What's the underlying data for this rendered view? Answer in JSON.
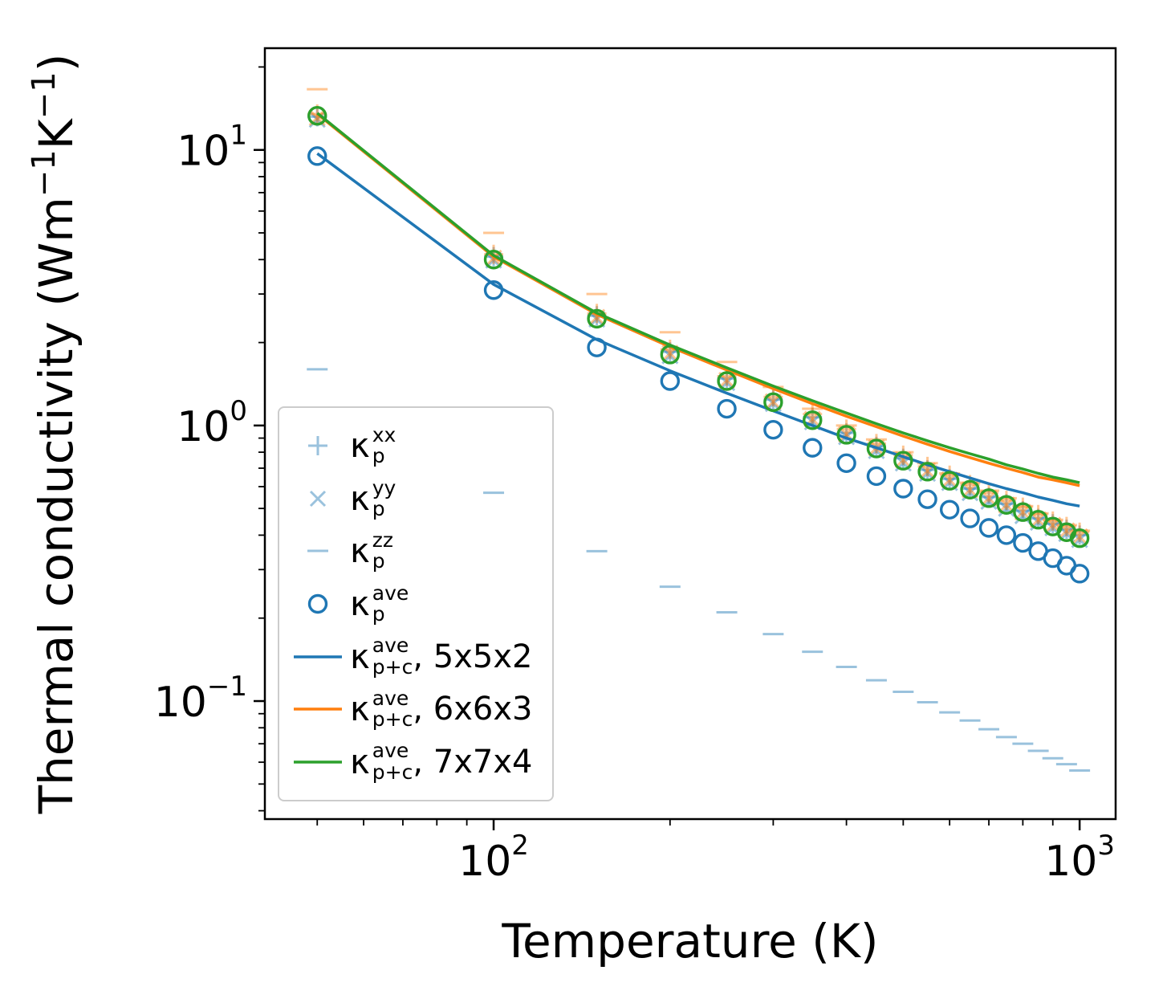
{
  "colors": {
    "blue": "#1f77b4",
    "orange": "#ff7f0e",
    "green": "#2ca02c",
    "pale_marker_opacity": 0.45,
    "axis": "#000000",
    "legend_border": "#cccccc"
  },
  "legend": {
    "items": [
      {
        "marker": "plus",
        "symbol": "κ",
        "sub": "p",
        "sup": "xx",
        "suffix": "",
        "color": "#1f77b4",
        "opacity": 0.45,
        "lw": 3
      },
      {
        "marker": "x",
        "symbol": "κ",
        "sub": "p",
        "sup": "yy",
        "suffix": "",
        "color": "#1f77b4",
        "opacity": 0.45,
        "lw": 3
      },
      {
        "marker": "hline",
        "symbol": "κ",
        "sub": "p",
        "sup": "zz",
        "suffix": "",
        "color": "#1f77b4",
        "opacity": 0.45,
        "lw": 3
      },
      {
        "marker": "circle",
        "symbol": "κ",
        "sub": "p",
        "sup": "ave",
        "suffix": "",
        "color": "#1f77b4",
        "opacity": 1,
        "lw": 3.4
      },
      {
        "marker": "line",
        "symbol": "κ",
        "sub": "p+c",
        "sup": "ave",
        "suffix": ", 5x5x2",
        "color": "#1f77b4",
        "opacity": 1,
        "lw": 3.5
      },
      {
        "marker": "line",
        "symbol": "κ",
        "sub": "p+c",
        "sup": "ave",
        "suffix": ", 6x6x3",
        "color": "#ff7f0e",
        "opacity": 1,
        "lw": 3.5
      },
      {
        "marker": "line",
        "symbol": "κ",
        "sub": "p+c",
        "sup": "ave",
        "suffix": ", 7x7x4",
        "color": "#2ca02c",
        "opacity": 1,
        "lw": 3.5
      }
    ]
  },
  "chart_data": {
    "type": "scatter",
    "title": "",
    "xlabel": "Temperature (K)",
    "ylabel": "Thermal conductivity (Wm−1K−1)",
    "ylabel_parts": [
      {
        "t": "Thermal conductivity (Wm",
        "sup": false
      },
      {
        "t": "−1",
        "sup": true
      },
      {
        "t": "K",
        "sup": false
      },
      {
        "t": "−1",
        "sup": true
      },
      {
        "t": ")",
        "sup": false
      }
    ],
    "x_scale": "log",
    "y_scale": "log",
    "xlim": [
      40.7,
      1152
    ],
    "ylim": [
      0.0373,
      23.4
    ],
    "grid": false,
    "legend_position": "lower left inside",
    "x": [
      50,
      100,
      150,
      200,
      250,
      300,
      350,
      400,
      450,
      500,
      550,
      600,
      650,
      700,
      750,
      800,
      850,
      900,
      950,
      1000
    ],
    "x_ticks": [
      {
        "v": 100,
        "exp": "2"
      },
      {
        "v": 1000,
        "exp": "3"
      }
    ],
    "y_ticks": [
      {
        "v": 10,
        "exp": "1"
      },
      {
        "v": 1,
        "exp": "0"
      },
      {
        "v": 0.1,
        "exp": "−1"
      }
    ],
    "x_minor": [
      50,
      60,
      70,
      80,
      90,
      200,
      300,
      400,
      500,
      600,
      700,
      800,
      900
    ],
    "y_minor": [
      0.04,
      0.05,
      0.06,
      0.07,
      0.08,
      0.09,
      0.2,
      0.3,
      0.4,
      0.5,
      0.6,
      0.7,
      0.8,
      0.9,
      2,
      3,
      4,
      5,
      6,
      7,
      8,
      9,
      20
    ],
    "series": [
      {
        "name": "kappa-p-xx-5x5x2",
        "label": "κp^xx",
        "plot": "scatter",
        "marker": "plus",
        "color": "#1f77b4",
        "opacity": 0.45,
        "values": [
          13.2,
          4.1,
          2.5,
          1.85,
          1.48,
          1.24,
          1.07,
          0.94,
          0.84,
          0.76,
          0.69,
          0.64,
          0.59,
          0.55,
          0.52,
          0.49,
          0.46,
          0.44,
          0.42,
          0.4
        ]
      },
      {
        "name": "kappa-p-yy-5x5x2",
        "label": "κp^yy",
        "plot": "scatter",
        "marker": "x",
        "color": "#1f77b4",
        "opacity": 0.45,
        "values": [
          12.9,
          3.98,
          2.43,
          1.79,
          1.43,
          1.2,
          1.03,
          0.91,
          0.81,
          0.73,
          0.67,
          0.62,
          0.57,
          0.53,
          0.5,
          0.47,
          0.445,
          0.425,
          0.405,
          0.385
        ]
      },
      {
        "name": "kappa-p-zz-5x5x2",
        "label": "κp^zz",
        "plot": "scatter",
        "marker": "hline",
        "color": "#1f77b4",
        "opacity": 0.45,
        "values": [
          1.6,
          0.57,
          0.35,
          0.26,
          0.21,
          0.175,
          0.151,
          0.133,
          0.119,
          0.108,
          0.099,
          0.091,
          0.085,
          0.079,
          0.074,
          0.07,
          0.066,
          0.062,
          0.059,
          0.056
        ]
      },
      {
        "name": "kappa-p-xx-6x6x3",
        "label": "κp^xx (6x6x3)",
        "plot": "scatter",
        "marker": "plus",
        "color": "#ff7f0e",
        "opacity": 0.45,
        "values": [
          13.5,
          4.18,
          2.55,
          1.89,
          1.51,
          1.27,
          1.1,
          0.97,
          0.86,
          0.78,
          0.71,
          0.66,
          0.61,
          0.57,
          0.535,
          0.505,
          0.475,
          0.45,
          0.43,
          0.41
        ]
      },
      {
        "name": "kappa-p-yy-6x6x3",
        "label": "κp^yy (6x6x3)",
        "plot": "scatter",
        "marker": "x",
        "color": "#ff7f0e",
        "opacity": 0.45,
        "values": [
          13.1,
          4.05,
          2.47,
          1.83,
          1.46,
          1.22,
          1.055,
          0.93,
          0.83,
          0.75,
          0.685,
          0.635,
          0.585,
          0.545,
          0.515,
          0.485,
          0.455,
          0.435,
          0.415,
          0.395
        ]
      },
      {
        "name": "kappa-p-zz-6x6x3",
        "label": "κp^zz (6x6x3)",
        "plot": "scatter",
        "marker": "hline",
        "color": "#ff7f0e",
        "opacity": 0.45,
        "values": [
          16.6,
          5.0,
          3.0,
          2.18,
          1.7,
          1.38,
          1.15,
          1.0,
          0.89,
          0.8,
          0.73,
          0.67,
          0.62,
          0.58,
          0.545,
          0.51,
          0.48,
          0.455,
          0.435,
          0.415
        ]
      },
      {
        "name": "kappa-p+c-ave-6x6x3",
        "label": "κp+c^ave, 6x6x3",
        "plot": "line",
        "marker": "none",
        "color": "#ff7f0e",
        "opacity": 1,
        "values": [
          13.5,
          4.1,
          2.53,
          1.93,
          1.59,
          1.36,
          1.2,
          1.08,
          0.99,
          0.915,
          0.855,
          0.805,
          0.765,
          0.73,
          0.7,
          0.675,
          0.65,
          0.635,
          0.62,
          0.605
        ]
      },
      {
        "name": "kappa-p+c-ave-7x7x4",
        "label": "κp+c^ave, 7x7x4",
        "plot": "line",
        "marker": "none",
        "color": "#2ca02c",
        "opacity": 1,
        "values": [
          13.6,
          4.14,
          2.56,
          1.96,
          1.62,
          1.39,
          1.23,
          1.11,
          1.015,
          0.94,
          0.88,
          0.83,
          0.79,
          0.755,
          0.72,
          0.695,
          0.67,
          0.65,
          0.635,
          0.62
        ]
      },
      {
        "name": "kappa-p+c-ave-5x5x2",
        "label": "κp+c^ave, 5x5x2",
        "plot": "line",
        "marker": "none",
        "color": "#1f77b4",
        "opacity": 1,
        "values": [
          9.7,
          3.25,
          2.05,
          1.58,
          1.31,
          1.13,
          1.0,
          0.9,
          0.83,
          0.77,
          0.72,
          0.68,
          0.645,
          0.615,
          0.59,
          0.57,
          0.55,
          0.535,
          0.52,
          0.51
        ]
      },
      {
        "name": "kappa-p-ave-5x5x2",
        "label": "κp^ave",
        "plot": "scatter",
        "marker": "circle",
        "color": "#1f77b4",
        "opacity": 1,
        "values": [
          9.5,
          3.1,
          1.92,
          1.45,
          1.15,
          0.965,
          0.83,
          0.73,
          0.655,
          0.59,
          0.54,
          0.495,
          0.46,
          0.425,
          0.4,
          0.375,
          0.35,
          0.33,
          0.31,
          0.29
        ]
      },
      {
        "name": "kappa-p-ave-7x7x4",
        "label": "κp^ave (7x7x4)",
        "plot": "scatter",
        "marker": "circle",
        "color": "#2ca02c",
        "opacity": 1,
        "values": [
          13.3,
          4.0,
          2.44,
          1.81,
          1.45,
          1.215,
          1.045,
          0.925,
          0.825,
          0.745,
          0.68,
          0.63,
          0.585,
          0.545,
          0.515,
          0.485,
          0.455,
          0.43,
          0.41,
          0.39
        ]
      }
    ]
  }
}
